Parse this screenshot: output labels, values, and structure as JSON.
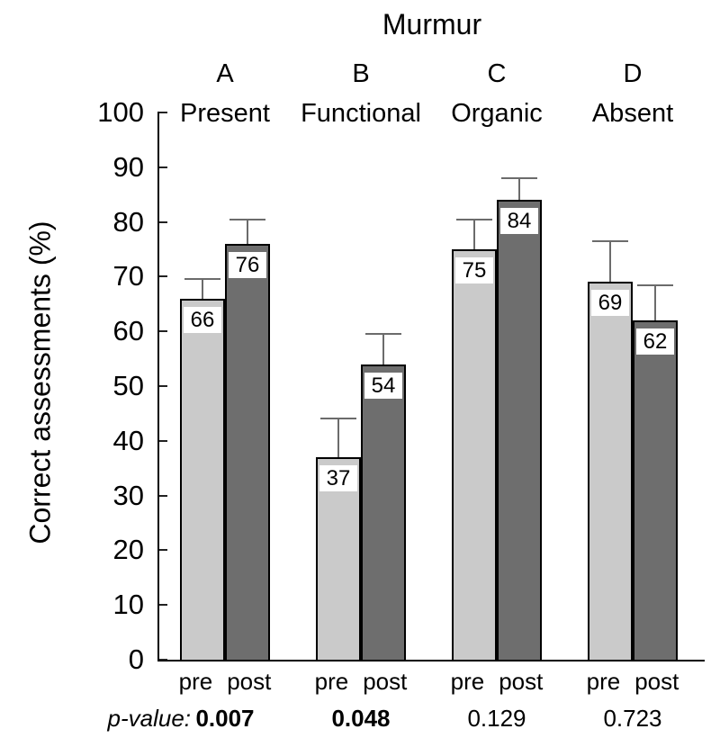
{
  "chart_data": {
    "type": "bar",
    "title": "Murmur",
    "ylabel": "Correct assessments (%)",
    "ylim": [
      0,
      100
    ],
    "ytick_step": 10,
    "legend_position": "none",
    "grid": false,
    "series_labels": {
      "pre": "pre",
      "post": "post"
    },
    "p_label": "p-value:",
    "groups": [
      {
        "letter": "A",
        "name": "Present",
        "pre": 66,
        "post": 76,
        "pre_err": 3.5,
        "post_err": 4.5,
        "p_value": "0.007",
        "p_bold": true
      },
      {
        "letter": "B",
        "name": "Functional",
        "pre": 37,
        "post": 54,
        "pre_err": 7.0,
        "post_err": 5.5,
        "p_value": "0.048",
        "p_bold": true
      },
      {
        "letter": "C",
        "name": "Organic",
        "pre": 75,
        "post": 84,
        "pre_err": 5.5,
        "post_err": 4.0,
        "p_value": "0.129",
        "p_bold": false
      },
      {
        "letter": "D",
        "name": "Absent",
        "pre": 69,
        "post": 62,
        "pre_err": 7.5,
        "post_err": 6.5,
        "p_value": "0.723",
        "p_bold": false
      }
    ],
    "colors": {
      "pre_bar": "#cacaca",
      "post_bar": "#6e6e6e",
      "bar_border": "#000000",
      "error_bar": "#6b6b6b",
      "axis": "#000000"
    }
  }
}
